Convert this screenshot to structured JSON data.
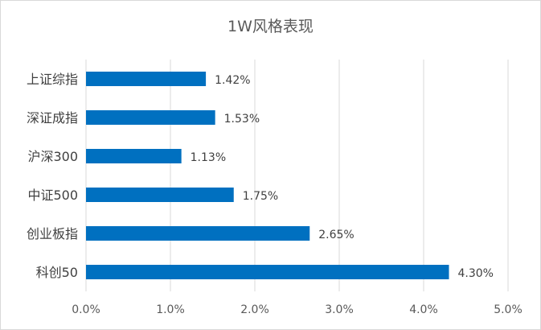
{
  "chart_data": {
    "type": "bar",
    "orientation": "horizontal",
    "title": "1W风格表现",
    "categories": [
      "上证综指",
      "深证成指",
      "沪深300",
      "中证500",
      "创业板指",
      "科创50"
    ],
    "values": [
      1.42,
      1.53,
      1.13,
      1.75,
      2.65,
      4.3
    ],
    "data_labels": [
      "1.42%",
      "1.53%",
      "1.13%",
      "1.75%",
      "2.65%",
      "4.30%"
    ],
    "xlim": [
      0,
      5
    ],
    "x_ticks": [
      0,
      1,
      2,
      3,
      4,
      5
    ],
    "x_tick_labels": [
      "0.0%",
      "1.0%",
      "2.0%",
      "3.0%",
      "4.0%",
      "5.0%"
    ],
    "xlabel": "",
    "ylabel": "",
    "grid": "vertical",
    "legend": "none",
    "bar_color": "#0070C0",
    "grid_color": "#d9d9d9"
  }
}
